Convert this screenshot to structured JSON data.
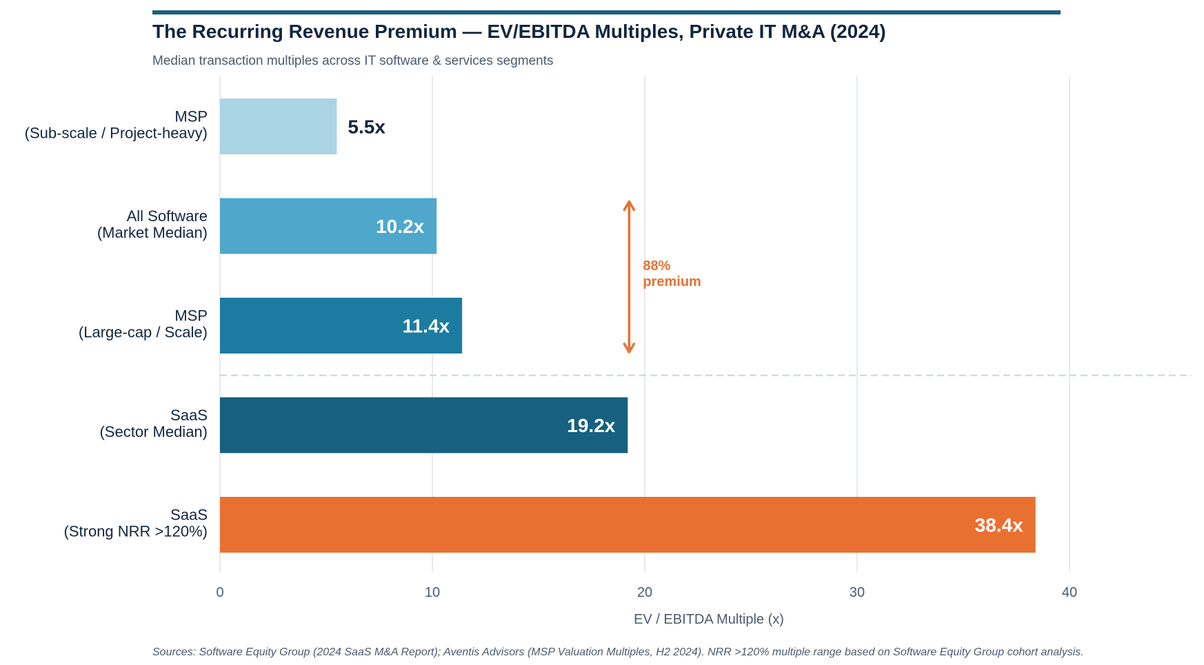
{
  "header": {
    "title": "The Recurring Revenue Premium — EV/EBITDA Multiples, Private IT M&A (2024)",
    "subtitle": "Median transaction multiples across IT software & services segments"
  },
  "footer": {
    "sources": "Sources: Software Equity Group (2024 SaaS M&A Report); Aventis Advisors (MSP Valuation Multiples, H2 2024).  NRR >120% multiple range based on Software Equity Group cohort analysis."
  },
  "colors": {
    "accent_rule": "#1b6080",
    "annotation": "#e87132",
    "gridline": "#d5dbe3",
    "divider": "#d0d7e2"
  },
  "chart_data": {
    "type": "bar",
    "orientation": "horizontal",
    "title": "The Recurring Revenue Premium — EV/EBITDA Multiples, Private IT M&A (2024)",
    "subtitle": "Median transaction multiples across IT software & services segments",
    "xlabel": "EV / EBITDA Multiple  (x)",
    "ylabel": "",
    "xlim": [
      0,
      45
    ],
    "xticks": [
      0,
      10,
      20,
      30,
      40
    ],
    "grid": true,
    "categories": [
      [
        "MSP",
        "(Sub-scale / Project-heavy)"
      ],
      [
        "All Software",
        "(Market Median)"
      ],
      [
        "MSP",
        "(Large-cap / Scale)"
      ],
      [
        "SaaS",
        "(Sector Median)"
      ],
      [
        "SaaS",
        "(Strong NRR >120%)"
      ]
    ],
    "values": [
      5.5,
      10.2,
      11.4,
      19.2,
      38.4
    ],
    "data_labels": [
      "5.5x",
      "10.2x",
      "11.4x",
      "19.2x",
      "38.4x"
    ],
    "bar_colors": [
      "#aad3e4",
      "#4fa7cc",
      "#1c7ba0",
      "#176080",
      "#e87132"
    ],
    "label_inside": [
      false,
      true,
      true,
      true,
      true
    ],
    "divider_after_index": 2,
    "annotation": {
      "text_line1": "88%",
      "text_line2": "premium",
      "x_value": 19.2,
      "from_category_index": 1,
      "to_category_index": 2,
      "color": "#e87132"
    }
  }
}
